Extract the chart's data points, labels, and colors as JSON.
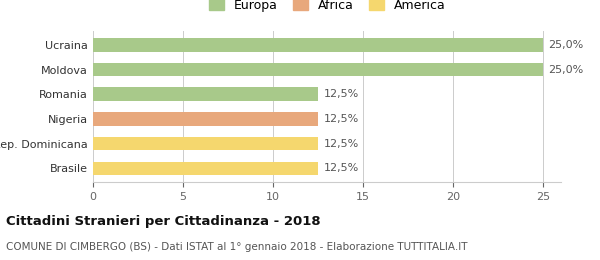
{
  "categories": [
    "Brasile",
    "Rep. Dominicana",
    "Nigeria",
    "Romania",
    "Moldova",
    "Ucraina"
  ],
  "values": [
    12.5,
    12.5,
    12.5,
    12.5,
    25.0,
    25.0
  ],
  "bar_colors": [
    "#f5d76e",
    "#f5d76e",
    "#e8a87c",
    "#a8c98a",
    "#a8c98a",
    "#a8c98a"
  ],
  "value_labels": [
    "12,5%",
    "12,5%",
    "12,5%",
    "12,5%",
    "25,0%",
    "25,0%"
  ],
  "legend_entries": [
    {
      "label": "Europa",
      "color": "#a8c98a"
    },
    {
      "label": "Africa",
      "color": "#e8a87c"
    },
    {
      "label": "America",
      "color": "#f5d76e"
    }
  ],
  "xlim": [
    0,
    26
  ],
  "xticks": [
    0,
    5,
    10,
    15,
    20,
    25
  ],
  "title": "Cittadini Stranieri per Cittadinanza - 2018",
  "subtitle": "COMUNE DI CIMBERGO (BS) - Dati ISTAT al 1° gennaio 2018 - Elaborazione TUTTITALIA.IT",
  "title_fontsize": 9.5,
  "subtitle_fontsize": 7.5,
  "label_fontsize": 8,
  "tick_fontsize": 8,
  "legend_fontsize": 9,
  "background_color": "#ffffff",
  "bar_height": 0.55
}
